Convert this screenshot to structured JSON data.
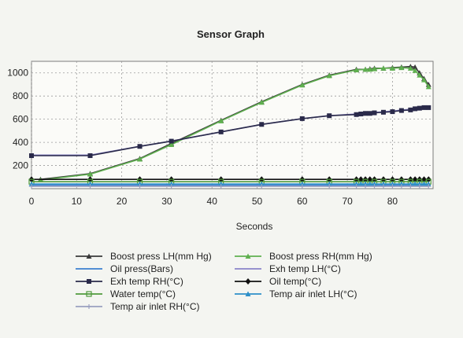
{
  "chart_data": {
    "type": "line",
    "title": "Sensor Graph",
    "xlabel": "Seconds",
    "ylabel": "",
    "xlim": [
      0,
      89
    ],
    "ylim": [
      0,
      1100
    ],
    "x_ticks": [
      0,
      10,
      20,
      30,
      40,
      50,
      60,
      70,
      80
    ],
    "y_ticks": [
      200,
      400,
      600,
      800,
      1000
    ],
    "grid": true,
    "legend_position": "bottom",
    "series": [
      {
        "name": "Boost press LH(mm Hg)",
        "color": "#3a3a3a",
        "marker": "triangle",
        "x": [
          2,
          13,
          24,
          31,
          42,
          51,
          60,
          66,
          72,
          74,
          75,
          76,
          78,
          80,
          82,
          84,
          85,
          86,
          87,
          88
        ],
        "y": [
          80,
          130,
          260,
          390,
          590,
          750,
          900,
          980,
          1030,
          1030,
          1035,
          1040,
          1040,
          1045,
          1050,
          1055,
          1050,
          1000,
          950,
          900
        ]
      },
      {
        "name": "Boost press RH(mm Hg)",
        "color": "#5fb04f",
        "marker": "triangle",
        "x": [
          2,
          13,
          24,
          31,
          42,
          51,
          60,
          66,
          72,
          74,
          75,
          76,
          78,
          80,
          82,
          84,
          85,
          86,
          87,
          88
        ],
        "y": [
          75,
          125,
          255,
          380,
          585,
          745,
          895,
          975,
          1025,
          1030,
          1030,
          1035,
          1040,
          1040,
          1045,
          1040,
          1020,
          980,
          940,
          880
        ]
      },
      {
        "name": "Oil press(Bars)",
        "color": "#3b7fd0",
        "marker": "none",
        "x": [
          0,
          13,
          24,
          31,
          42,
          51,
          60,
          66,
          72,
          75,
          80,
          85,
          88
        ],
        "y": [
          30,
          30,
          30,
          30,
          30,
          30,
          30,
          30,
          30,
          30,
          30,
          30,
          30
        ]
      },
      {
        "name": "Exh temp LH(°C)",
        "color": "#8a84c8",
        "marker": "none",
        "x": [
          0,
          13,
          24,
          31,
          42,
          51,
          60,
          66,
          72,
          75,
          80,
          85,
          88
        ],
        "y": [
          290,
          290,
          365,
          410,
          490,
          555,
          605,
          630,
          645,
          655,
          670,
          690,
          700
        ]
      },
      {
        "name": "Exh temp RH(°C)",
        "color": "#2a2a4a",
        "marker": "square",
        "x": [
          0,
          13,
          24,
          31,
          42,
          51,
          60,
          66,
          72,
          73,
          74,
          75,
          76,
          78,
          80,
          82,
          84,
          85,
          86,
          87,
          88
        ],
        "y": [
          285,
          285,
          365,
          410,
          490,
          555,
          605,
          630,
          640,
          645,
          650,
          650,
          655,
          660,
          665,
          675,
          680,
          690,
          695,
          700,
          700
        ]
      },
      {
        "name": "Oil temp(°C)",
        "color": "#111111",
        "marker": "diamond",
        "x": [
          0,
          13,
          24,
          31,
          42,
          51,
          60,
          66,
          72,
          73,
          74,
          75,
          76,
          78,
          80,
          82,
          84,
          85,
          86,
          87,
          88
        ],
        "y": [
          80,
          80,
          80,
          80,
          80,
          80,
          80,
          80,
          80,
          80,
          80,
          80,
          80,
          80,
          80,
          80,
          80,
          80,
          80,
          80,
          80
        ]
      },
      {
        "name": "Water temp(°C)",
        "color": "#4f9a3c",
        "marker": "square-open",
        "x": [
          0,
          13,
          24,
          31,
          42,
          51,
          60,
          66,
          72,
          74,
          76,
          78,
          80,
          82,
          84,
          86,
          88
        ],
        "y": [
          60,
          60,
          60,
          60,
          60,
          60,
          60,
          60,
          60,
          60,
          60,
          60,
          60,
          60,
          60,
          60,
          60
        ]
      },
      {
        "name": "Temp air inlet LH(°C)",
        "color": "#2d8fc8",
        "marker": "triangle",
        "x": [
          0,
          13,
          24,
          31,
          42,
          51,
          60,
          66,
          72,
          73,
          74,
          75,
          76,
          78,
          80,
          82,
          84,
          85,
          86,
          87,
          88
        ],
        "y": [
          40,
          40,
          40,
          40,
          40,
          40,
          40,
          40,
          40,
          40,
          40,
          40,
          40,
          40,
          40,
          40,
          40,
          40,
          40,
          40,
          40
        ]
      },
      {
        "name": "Temp air inlet RH(°C)",
        "color": "#9aa0c0",
        "marker": "cross",
        "x": [
          0,
          13,
          24,
          31,
          42,
          51,
          60,
          66,
          72,
          74,
          76,
          78,
          80,
          82,
          84,
          86,
          88
        ],
        "y": [
          20,
          20,
          20,
          20,
          20,
          20,
          20,
          20,
          20,
          20,
          20,
          20,
          20,
          20,
          20,
          20,
          20
        ]
      }
    ],
    "legend_order": [
      "Boost press LH(mm Hg)",
      "Boost press RH(mm Hg)",
      "Oil press(Bars)",
      "Exh temp LH(°C)",
      "Exh temp RH(°C)",
      "Oil temp(°C)",
      "Water temp(°C)",
      "Temp air inlet LH(°C)",
      "Temp air inlet RH(°C)"
    ]
  }
}
